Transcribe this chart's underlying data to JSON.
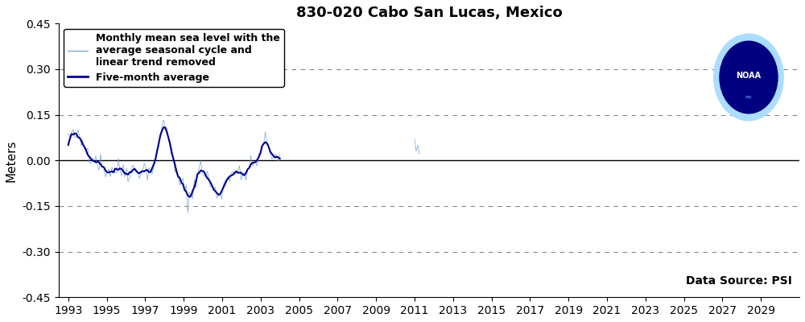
{
  "title": "830-020 Cabo San Lucas, Mexico",
  "ylabel": "Meters",
  "ylim": [
    -0.45,
    0.45
  ],
  "yticks": [
    -0.45,
    -0.3,
    -0.15,
    0.0,
    0.15,
    0.3,
    0.45
  ],
  "xlim": [
    1992.5,
    2031.0
  ],
  "xticks": [
    1993,
    1995,
    1997,
    1999,
    2001,
    2003,
    2005,
    2007,
    2009,
    2011,
    2013,
    2015,
    2017,
    2019,
    2021,
    2023,
    2025,
    2027,
    2029
  ],
  "grid_color": "#555555",
  "bg_color": "#ffffff",
  "thin_line_color": "#6699cc",
  "thick_line_color": "#00008B",
  "data_source_text": "Data Source: PSI",
  "legend_label1": "Monthly mean sea level with the\naverage seasonal cycle and\nlinear trend removed",
  "legend_label2": "Five-month average",
  "title_fontsize": 13,
  "axis_fontsize": 10,
  "legend_fontsize": 9,
  "dashed_yvals": [
    -0.3,
    -0.15,
    0.15,
    0.3
  ]
}
